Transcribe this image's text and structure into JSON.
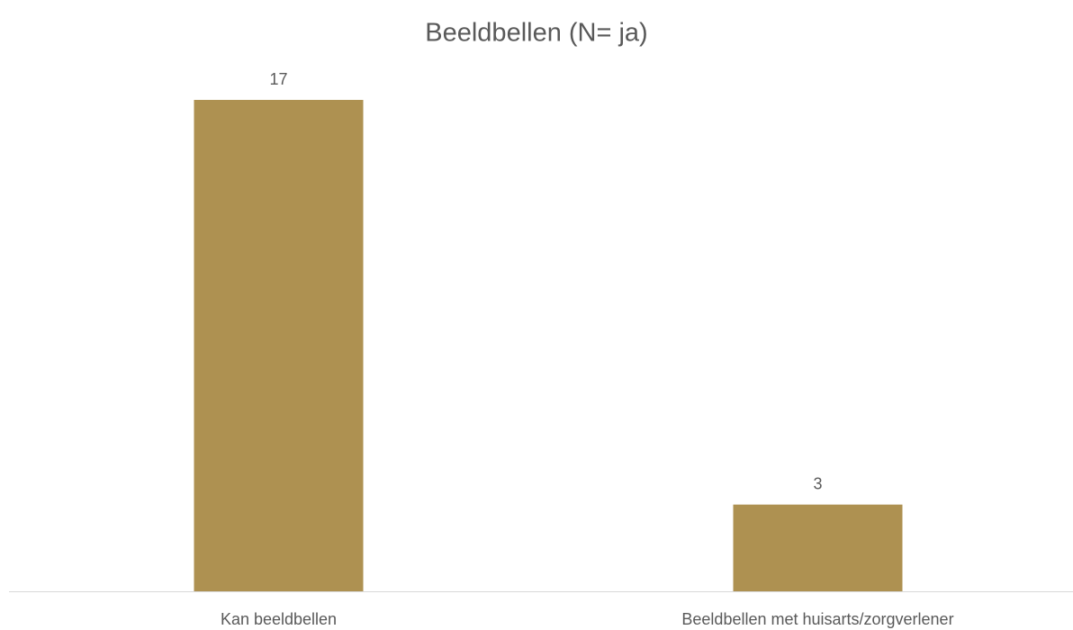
{
  "chart_data": {
    "type": "bar",
    "title": "Beeldbellen (N= ja)",
    "categories": [
      "Kan beeldbellen",
      "Beeldbellen met huisarts/zorgverlener"
    ],
    "values": [
      17,
      3
    ],
    "color": "#ae9151"
  }
}
